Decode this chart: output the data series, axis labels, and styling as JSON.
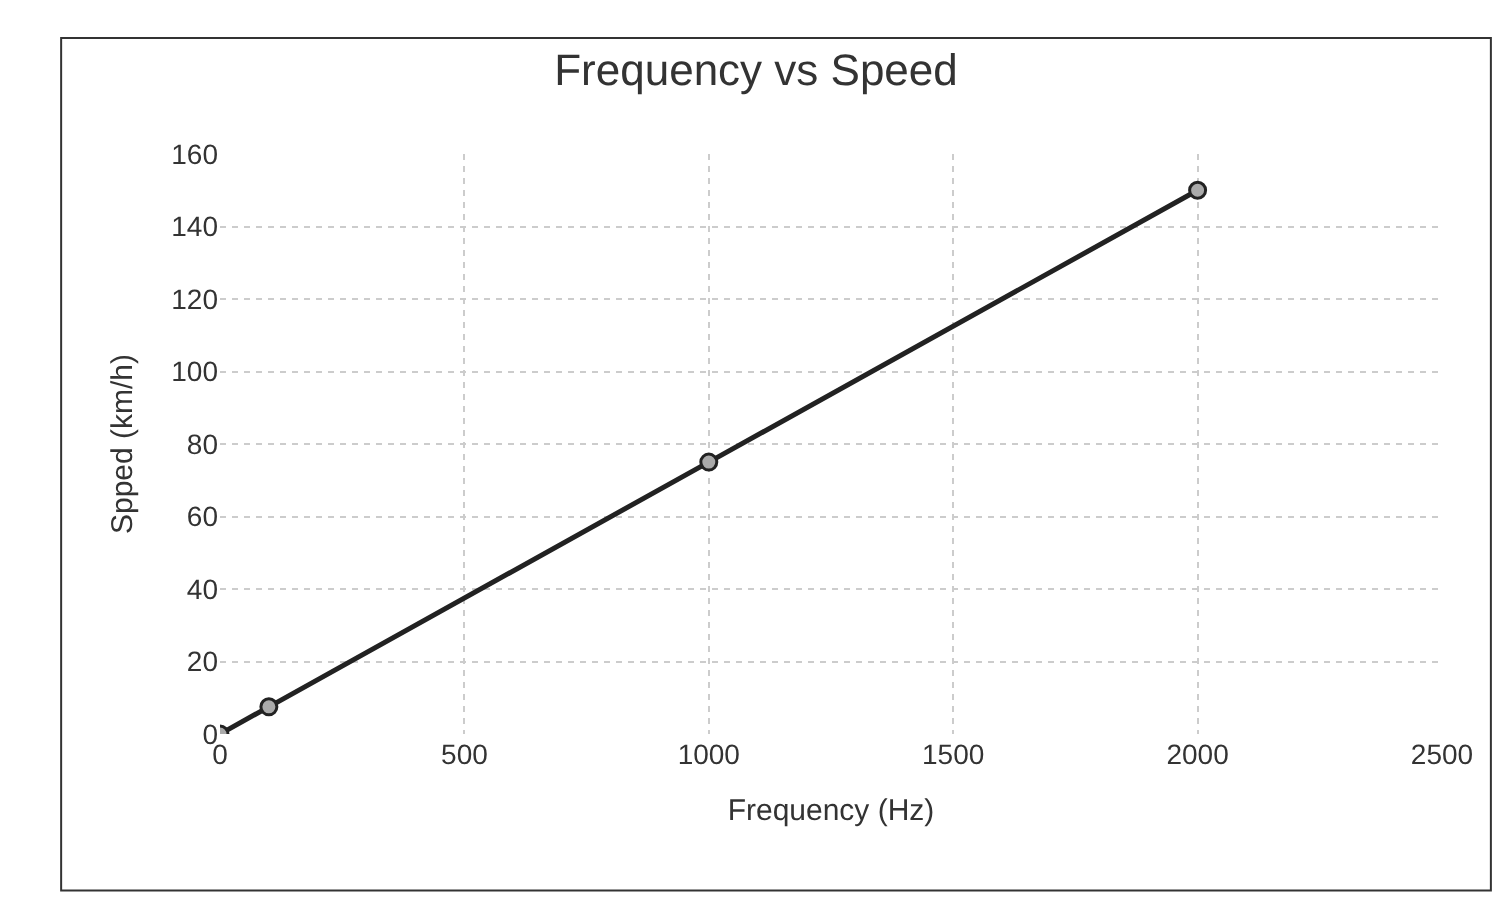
{
  "chart_data": {
    "type": "line",
    "title": "Frequency vs Speed",
    "xlabel": "Frequency (Hz)",
    "ylabel": "Spped (km/h)",
    "x": [
      0,
      100,
      1000,
      2000
    ],
    "series": [
      {
        "color": "#222222",
        "values": [
          0,
          7.5,
          75,
          150
        ]
      }
    ],
    "xlim": [
      0,
      2500
    ],
    "xticks": [
      0,
      500,
      1000,
      1500,
      2000,
      2500
    ],
    "ylim": [
      0,
      160
    ],
    "yticks": [
      0,
      20,
      40,
      60,
      80,
      100,
      120,
      140,
      160
    ],
    "grid": true,
    "marker": "circle",
    "line_style": "solid",
    "legend": false
  }
}
